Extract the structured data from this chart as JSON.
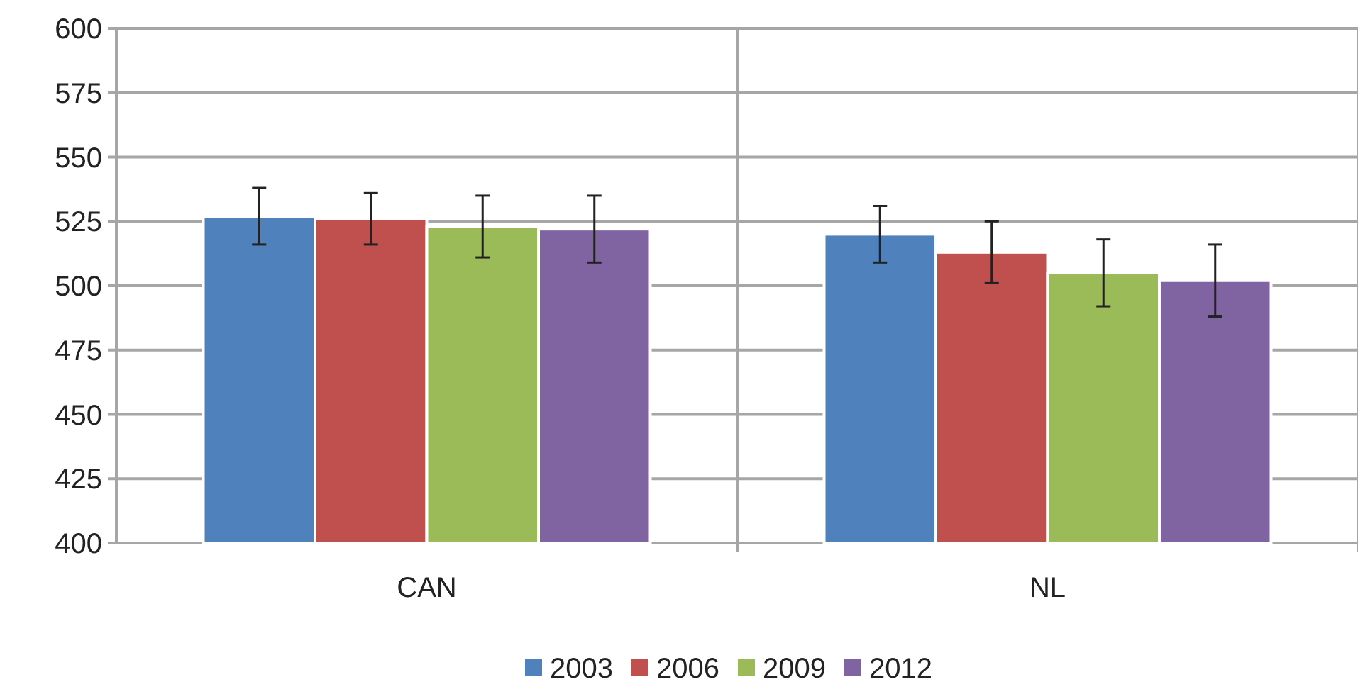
{
  "chart_data": {
    "type": "bar",
    "categories": [
      "CAN",
      "NL"
    ],
    "series": [
      {
        "name": "2003",
        "color": "#4f81bd",
        "values": [
          527,
          520
        ],
        "errors": [
          11,
          11
        ]
      },
      {
        "name": "2006",
        "color": "#c0504d",
        "values": [
          526,
          513
        ],
        "errors": [
          10,
          12
        ]
      },
      {
        "name": "2009",
        "color": "#9bbb59",
        "values": [
          523,
          505
        ],
        "errors": [
          12,
          13
        ]
      },
      {
        "name": "2012",
        "color": "#8064a2",
        "values": [
          522,
          502
        ],
        "errors": [
          13,
          14
        ]
      }
    ],
    "ylim": [
      400,
      600
    ],
    "yticks": [
      400,
      425,
      450,
      475,
      500,
      525,
      550,
      575,
      600
    ],
    "grid": true,
    "legend": "bottom"
  }
}
